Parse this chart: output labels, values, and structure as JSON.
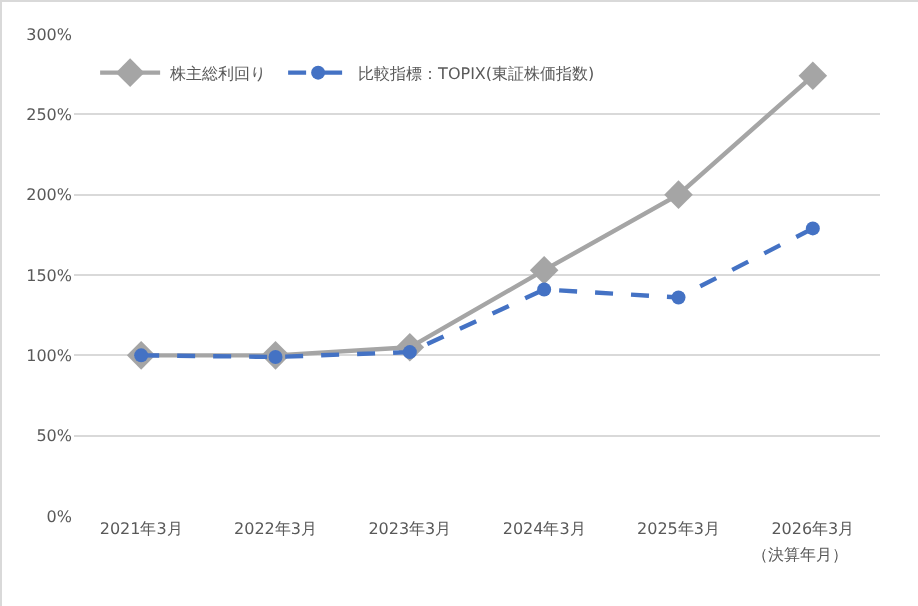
{
  "chart_data": {
    "type": "line",
    "categories": [
      "2021年3月",
      "2022年3月",
      "2023年3月",
      "2024年3月",
      "2025年3月",
      "2026年3月"
    ],
    "xlabel": "（決算年月）",
    "series": [
      {
        "name": "株主総利回り",
        "color": "#a5a5a5",
        "values": [
          100,
          100,
          105,
          153,
          200,
          274
        ],
        "marker": "diamond",
        "line_style": "solid"
      },
      {
        "name": "比較指標：TOPIX(東証株価指数)",
        "color": "#4472c4",
        "values": [
          100,
          99,
          102,
          141,
          136,
          179
        ],
        "marker": "circle",
        "line_style": "dashed"
      }
    ],
    "ylim": [
      0,
      300
    ],
    "yticks": [
      {
        "value": 0,
        "label": "0%"
      },
      {
        "value": 50,
        "label": "50%"
      },
      {
        "value": 100,
        "label": "100%"
      },
      {
        "value": 150,
        "label": "150%"
      },
      {
        "value": 200,
        "label": "200%"
      },
      {
        "value": 250,
        "label": "250%"
      },
      {
        "value": 300,
        "label": "300%"
      }
    ],
    "grid": "y",
    "legend": "top left"
  }
}
